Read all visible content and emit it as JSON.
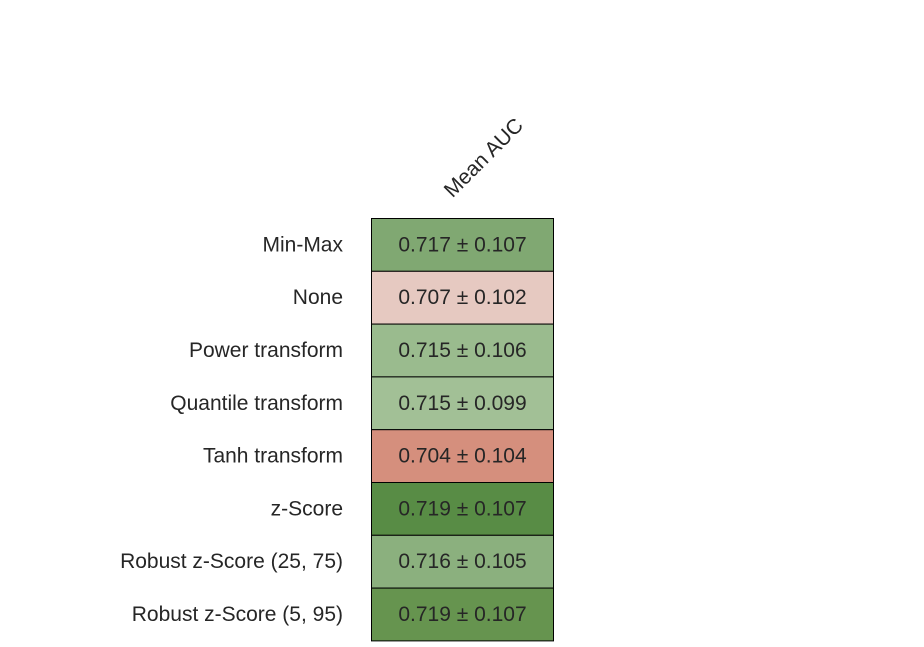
{
  "chart_data": {
    "type": "heatmap",
    "columns": [
      "Mean AUC"
    ],
    "rows": [
      {
        "label": "Min-Max",
        "mean": 0.717,
        "std": 0.107,
        "text": "0.717 ± 0.107",
        "color": "#80a872"
      },
      {
        "label": "None",
        "mean": 0.707,
        "std": 0.102,
        "text": "0.707 ± 0.102",
        "color": "#e6c9c1"
      },
      {
        "label": "Power transform",
        "mean": 0.715,
        "std": 0.106,
        "text": "0.715 ± 0.106",
        "color": "#9abb8e"
      },
      {
        "label": "Quantile transform",
        "mean": 0.715,
        "std": 0.099,
        "text": "0.715 ± 0.099",
        "color": "#a2c096"
      },
      {
        "label": "Tanh transform",
        "mean": 0.704,
        "std": 0.104,
        "text": "0.704 ± 0.104",
        "color": "#d58f7d"
      },
      {
        "label": "z-Score",
        "mean": 0.719,
        "std": 0.107,
        "text": "0.719 ± 0.107",
        "color": "#588c45"
      },
      {
        "label": "Robust z-Score (25, 75)",
        "mean": 0.716,
        "std": 0.105,
        "text": "0.716 ± 0.105",
        "color": "#8bb07e"
      },
      {
        "label": "Robust z-Score (5, 95)",
        "mean": 0.719,
        "std": 0.107,
        "text": "0.719 ± 0.107",
        "color": "#66944f"
      }
    ],
    "title": "",
    "xlabel": "",
    "ylabel": "",
    "colormap": {
      "low": "#d58f7d",
      "mid": "#e6c9c1",
      "high": "#588c45"
    },
    "grid": false,
    "legend": "none"
  }
}
